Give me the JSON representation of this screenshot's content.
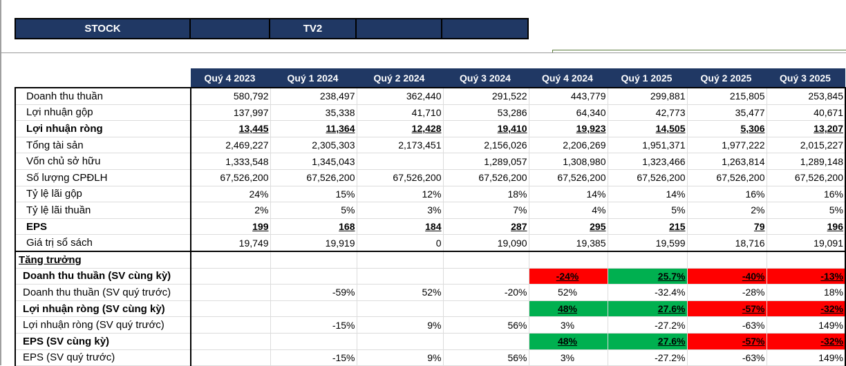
{
  "header": {
    "stock_label": "STOCK",
    "ticker": "TV2"
  },
  "colors": {
    "header_bg": "#203864",
    "negative": "#ff0000",
    "positive": "#00b050"
  },
  "columns": [
    "Quý 4 2023",
    "Quý 1 2024",
    "Quý 2 2024",
    "Quý 3 2024",
    "Quý 4 2024",
    "Quý 1 2025",
    "Quý 2 2025",
    "Quý 3 2025"
  ],
  "rows": [
    {
      "label": "Doanh thu thuần",
      "values": [
        "580,792",
        "238,497",
        "362,440",
        "291,522",
        "443,779",
        "299,881",
        "215,805",
        "253,845"
      ]
    },
    {
      "label": "Lợi nhuận gộp",
      "values": [
        "137,997",
        "35,338",
        "41,710",
        "53,286",
        "64,340",
        "42,773",
        "35,477",
        "40,671"
      ]
    },
    {
      "label": "Lợi nhuận ròng",
      "bold": true,
      "values": [
        "13,445",
        "11,364",
        "12,428",
        "19,410",
        "19,923",
        "14,505",
        "5,306",
        "13,207"
      ]
    },
    {
      "label": "Tổng tài sản",
      "values": [
        "2,469,227",
        "2,305,303",
        "2,173,451",
        "2,156,026",
        "2,206,269",
        "1,951,371",
        "1,977,222",
        "2,015,227"
      ]
    },
    {
      "label": "Vốn chủ sở hữu",
      "values": [
        "1,333,548",
        "1,345,043",
        "",
        "1,289,057",
        "1,308,980",
        "1,323,466",
        "1,263,814",
        "1,289,148"
      ]
    },
    {
      "label": "Số lượng CPĐLH",
      "values": [
        "67,526,200",
        "67,526,200",
        "67,526,200",
        "67,526,200",
        "67,526,200",
        "67,526,200",
        "67,526,200",
        "67,526,200"
      ]
    },
    {
      "label": "Tỷ lệ lãi gộp",
      "values": [
        "24%",
        "15%",
        "12%",
        "18%",
        "14%",
        "14%",
        "16%",
        "16%"
      ]
    },
    {
      "label": "Tỷ lệ lãi thuần",
      "values": [
        "2%",
        "5%",
        "3%",
        "7%",
        "4%",
        "5%",
        "2%",
        "5%"
      ]
    },
    {
      "label": "EPS",
      "bold": true,
      "values": [
        "199",
        "168",
        "184",
        "287",
        "295",
        "215",
        "79",
        "196"
      ]
    },
    {
      "label": "Giá trị sổ sách",
      "values": [
        "19,749",
        "19,919",
        "0",
        "19,090",
        "19,385",
        "19,599",
        "18,716",
        "19,091"
      ]
    }
  ],
  "growth_title": "Tăng trưởng",
  "growth_rows": [
    {
      "label": "Doanh thu thuần (SV cùng kỳ)",
      "bold": true,
      "values": [
        "",
        "",
        "",
        "",
        "-24%",
        "25.7%",
        "-40%",
        "-13%"
      ],
      "fills": [
        "",
        "",
        "",
        "",
        "red",
        "green",
        "red",
        "red"
      ]
    },
    {
      "label": "Doanh thu thuần (SV quý trước)",
      "values": [
        "",
        "-59%",
        "52%",
        "-20%",
        "52%",
        "-32.4%",
        "-28%",
        "18%"
      ]
    },
    {
      "label": "Lợi nhuận ròng (SV cùng kỳ)",
      "bold": true,
      "values": [
        "",
        "",
        "",
        "",
        "48%",
        "27.6%",
        "-57%",
        "-32%"
      ],
      "fills": [
        "",
        "",
        "",
        "",
        "green",
        "green",
        "red",
        "red"
      ]
    },
    {
      "label": "Lợi nhuận ròng (SV quý trước)",
      "values": [
        "",
        "-15%",
        "9%",
        "56%",
        "3%",
        "-27.2%",
        "-63%",
        "149%"
      ]
    },
    {
      "label": "EPS (SV cùng kỳ)",
      "bold": true,
      "values": [
        "",
        "",
        "",
        "",
        "48%",
        "27.6%",
        "-57%",
        "-32%"
      ],
      "fills": [
        "",
        "",
        "",
        "",
        "green",
        "green",
        "red",
        "red"
      ]
    },
    {
      "label": "EPS (SV quý trước)",
      "values": [
        "",
        "-15%",
        "9%",
        "56%",
        "3%",
        "-27.2%",
        "-63%",
        "149%"
      ]
    }
  ]
}
